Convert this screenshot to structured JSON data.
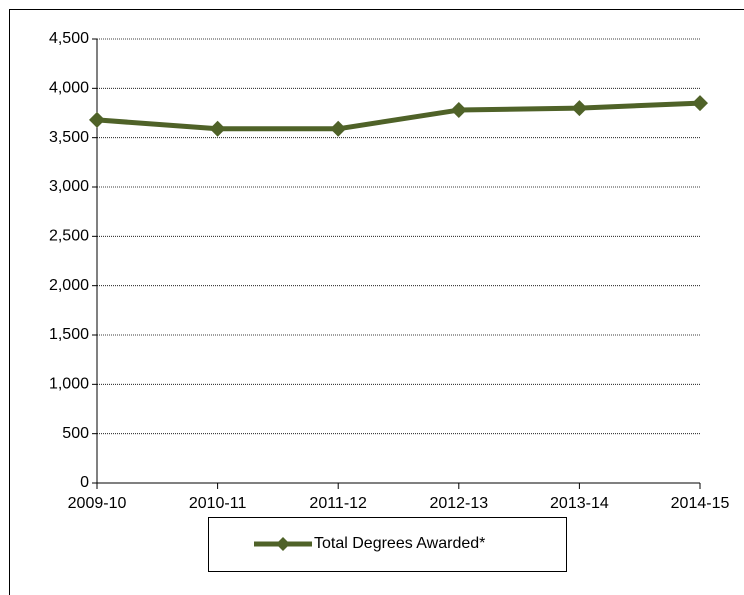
{
  "chart_data": {
    "type": "line",
    "categories": [
      "2009-10",
      "2010-11",
      "2011-12",
      "2012-13",
      "2013-14",
      "2014-15"
    ],
    "series": [
      {
        "name": "Total Degrees Awarded*",
        "color": "#4f6228",
        "values": [
          3680,
          3590,
          3590,
          3780,
          3800,
          3850
        ]
      }
    ],
    "ylim": [
      0,
      4500
    ],
    "yticks": [
      0,
      500,
      {
        "value": 1000,
        "label": "1,000"
      },
      {
        "value": 1500,
        "label": "1,500"
      },
      {
        "value": 2000,
        "label": "2,000"
      },
      {
        "value": 2500,
        "label": "2,500"
      },
      {
        "value": 3000,
        "label": "3,000"
      },
      {
        "value": 3500,
        "label": "3,500"
      },
      {
        "value": 4000,
        "label": "4,000"
      },
      {
        "value": 4500,
        "label": "4,500"
      }
    ],
    "grid": true,
    "legend": "bottom"
  }
}
